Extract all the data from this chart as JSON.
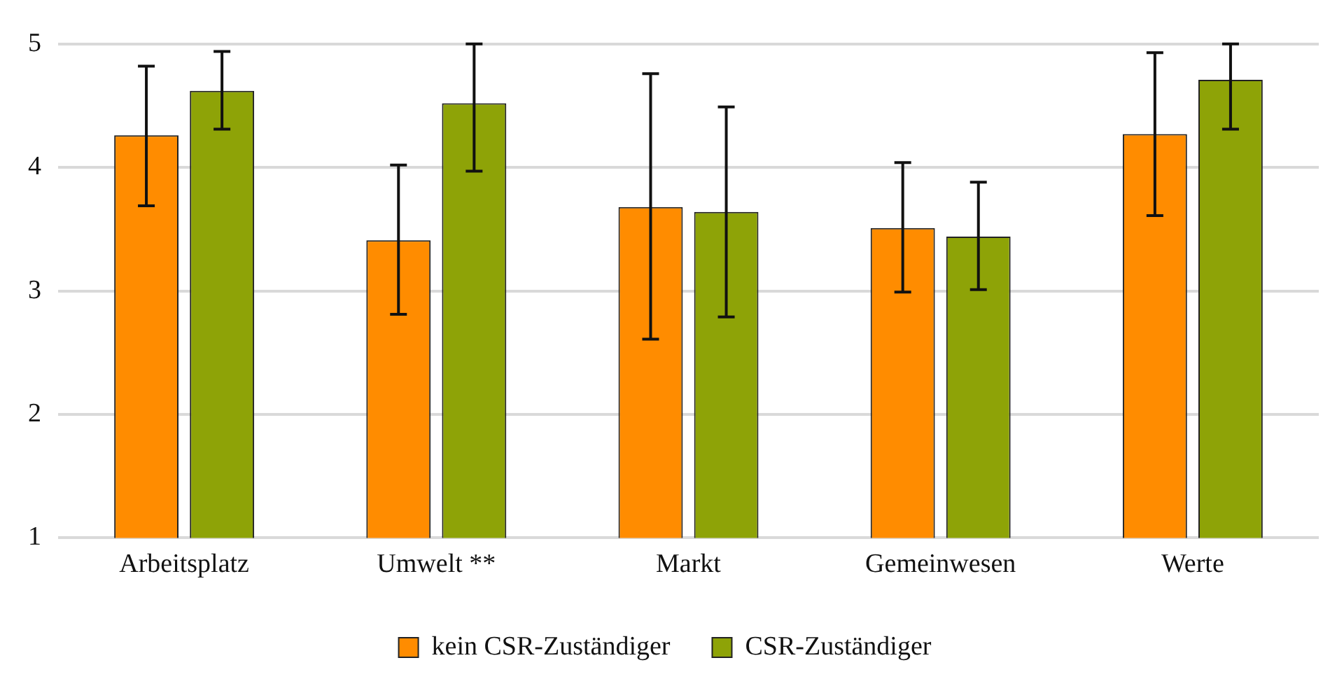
{
  "chart_data": {
    "type": "bar",
    "categories": [
      "Arbeitsplatz",
      "Umwelt **",
      "Markt",
      "Gemeinwesen",
      "Werte"
    ],
    "series": [
      {
        "name": "kein CSR-Zuständiger",
        "color": "#ff8c00",
        "values": [
          4.26,
          3.41,
          3.68,
          3.51,
          4.27
        ],
        "errors": [
          [
            3.69,
            4.82
          ],
          [
            2.81,
            4.02
          ],
          [
            2.61,
            4.76
          ],
          [
            2.99,
            4.04
          ],
          [
            3.61,
            4.93
          ]
        ]
      },
      {
        "name": "CSR-Zuständiger",
        "color": "#8ea307",
        "values": [
          4.62,
          4.52,
          3.64,
          3.44,
          4.71
        ],
        "errors": [
          [
            4.31,
            4.94
          ],
          [
            3.97,
            5
          ],
          [
            2.79,
            4.49
          ],
          [
            3.01,
            3.88
          ],
          [
            4.31,
            5
          ]
        ]
      }
    ],
    "ylim": [
      1,
      5
    ],
    "yticks": [
      1,
      2,
      3,
      4,
      5
    ],
    "grid": "y",
    "legend": "bottom"
  }
}
